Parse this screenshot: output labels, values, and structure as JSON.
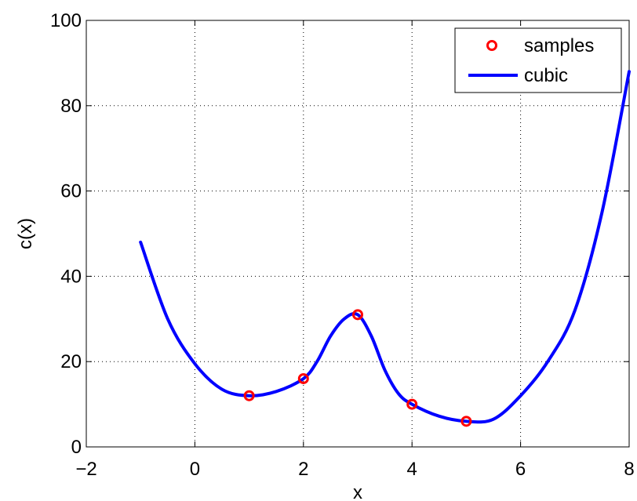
{
  "chart_data": {
    "type": "line",
    "title": "",
    "xlabel": "x",
    "ylabel": "c(x)",
    "xlim": [
      -2,
      8
    ],
    "ylim": [
      0,
      100
    ],
    "xticks": [
      -2,
      0,
      2,
      4,
      6,
      8
    ],
    "yticks": [
      0,
      20,
      40,
      60,
      80,
      100
    ],
    "xtick_labels": [
      "−2",
      "0",
      "2",
      "4",
      "6",
      "8"
    ],
    "ytick_labels": [
      "0",
      "20",
      "40",
      "60",
      "80",
      "100"
    ],
    "grid": true,
    "legend_position": "top-right",
    "series": [
      {
        "name": "samples",
        "style": "markers",
        "color": "#ff0000",
        "x": [
          1,
          2,
          3,
          4,
          5
        ],
        "y": [
          12,
          16,
          31,
          10,
          6
        ]
      },
      {
        "name": "cubic",
        "style": "line",
        "color": "#0000ff",
        "x": [
          -1,
          -0.5,
          0,
          0.5,
          1,
          1.5,
          2,
          2.25,
          2.5,
          2.75,
          3,
          3.25,
          3.5,
          3.75,
          4,
          4.5,
          5,
          5.5,
          6,
          6.5,
          7,
          7.5,
          8
        ],
        "y": [
          48,
          30,
          19.5,
          13.5,
          12,
          13,
          16,
          20,
          26,
          30,
          31,
          26,
          18,
          12.5,
          10,
          7.2,
          6,
          6.5,
          12,
          20,
          32,
          55,
          88
        ]
      }
    ]
  }
}
